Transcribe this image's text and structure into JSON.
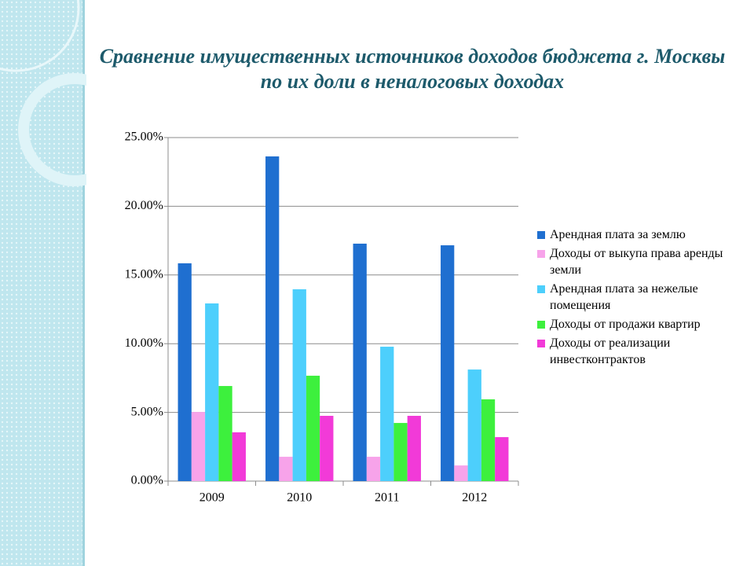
{
  "chart_data": {
    "type": "bar",
    "title": "Сравнение имущественных источников доходов бюджета г. Москвы по их доли в неналоговых доходах",
    "categories": [
      "2009",
      "2010",
      "2011",
      "2012"
    ],
    "series": [
      {
        "name": "Арендная плата за землю",
        "color": "#1f6fd0",
        "values": [
          15.85,
          23.63,
          17.28,
          17.16
        ]
      },
      {
        "name": "Доходы от выкупа права аренды земли",
        "color": "#f7a3ea",
        "values": [
          5.03,
          1.77,
          1.77,
          1.14
        ]
      },
      {
        "name": "Арендная плата за нежелые помещения",
        "color": "#4dcffc",
        "values": [
          12.93,
          13.96,
          9.78,
          8.12
        ]
      },
      {
        "name": "Доходы от продажи квартир",
        "color": "#3df03d",
        "values": [
          6.92,
          7.67,
          4.23,
          5.95
        ]
      },
      {
        "name": "Доходы от реализации инвестконтрактов",
        "color": "#f23ad8",
        "values": [
          3.55,
          4.75,
          4.75,
          3.2
        ]
      }
    ],
    "ylim": [
      0,
      25
    ],
    "yticks": [
      {
        "value": 0,
        "label": "0.00%"
      },
      {
        "value": 5,
        "label": "5.00%"
      },
      {
        "value": 10,
        "label": "10.00%"
      },
      {
        "value": 15,
        "label": "15.00%"
      },
      {
        "value": 20,
        "label": "20.00%"
      },
      {
        "value": 25,
        "label": "25.00%"
      }
    ],
    "grid": true,
    "legend": "right"
  }
}
